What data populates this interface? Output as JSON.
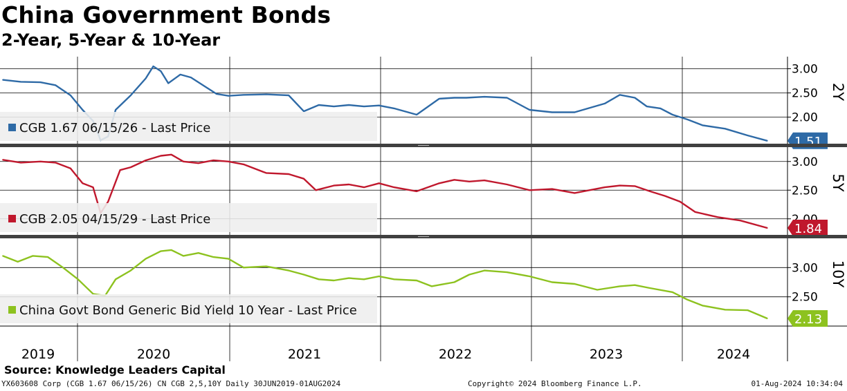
{
  "header": {
    "title": "China Government Bonds",
    "subtitle": "2-Year, 5-Year & 10-Year"
  },
  "footer": {
    "source": "Source: Knowledge Leaders Capital",
    "left": "YX603608 Corp (CGB 1.67 06/15/26) CN CGB 2,5,10Y  Daily 30JUN2019-01AUG2024",
    "middle": "Copyright© 2024 Bloomberg Finance L.P.",
    "right": "01-Aug-2024 10:34:04"
  },
  "colors": {
    "two_year": "#2e6aa6",
    "five_year": "#c0182d",
    "ten_year": "#8dc21f",
    "grid": "#000000",
    "separator": "#404040",
    "legend_bg": "#eeeeee"
  },
  "chart_data": [
    {
      "type": "line",
      "panel": "2Y",
      "axis_title": "2Y",
      "legend": "CGB 1.67 06/15/26 - Last Price",
      "last_value": "1.51",
      "yticks": [
        "3.00",
        "2.50",
        "2.00"
      ],
      "ylim": [
        1.45,
        3.25
      ],
      "x": [
        2019.5,
        2019.62,
        2019.75,
        2019.85,
        2019.95,
        2020.03,
        2020.1,
        2020.15,
        2020.2,
        2020.25,
        2020.35,
        2020.45,
        2020.5,
        2020.55,
        2020.6,
        2020.68,
        2020.75,
        2020.85,
        2020.92,
        2021.0,
        2021.1,
        2021.25,
        2021.4,
        2021.5,
        2021.6,
        2021.7,
        2021.8,
        2021.9,
        2022.0,
        2022.1,
        2022.25,
        2022.4,
        2022.5,
        2022.58,
        2022.7,
        2022.85,
        2023.0,
        2023.15,
        2023.3,
        2023.5,
        2023.6,
        2023.7,
        2023.78,
        2023.87,
        2023.95,
        2024.05,
        2024.15,
        2024.3,
        2024.45,
        2024.58
      ],
      "values": [
        2.77,
        2.73,
        2.72,
        2.66,
        2.45,
        2.15,
        1.92,
        1.52,
        1.6,
        2.15,
        2.45,
        2.8,
        3.05,
        2.95,
        2.7,
        2.88,
        2.82,
        2.62,
        2.48,
        2.44,
        2.46,
        2.47,
        2.45,
        2.12,
        2.25,
        2.22,
        2.25,
        2.22,
        2.24,
        2.18,
        2.05,
        2.38,
        2.4,
        2.4,
        2.42,
        2.4,
        2.15,
        2.1,
        2.1,
        2.28,
        2.46,
        2.4,
        2.22,
        2.18,
        2.05,
        1.95,
        1.83,
        1.76,
        1.62,
        1.51
      ]
    },
    {
      "type": "line",
      "panel": "5Y",
      "axis_title": "5Y",
      "legend": "CGB 2.05 04/15/29 - Last Price",
      "last_value": "1.84",
      "yticks": [
        "3.00",
        "2.50",
        "2.00"
      ],
      "ylim": [
        1.72,
        3.25
      ],
      "x": [
        2019.5,
        2019.62,
        2019.75,
        2019.85,
        2019.95,
        2020.03,
        2020.1,
        2020.15,
        2020.2,
        2020.28,
        2020.35,
        2020.45,
        2020.55,
        2020.62,
        2020.7,
        2020.8,
        2020.9,
        2021.0,
        2021.1,
        2021.25,
        2021.4,
        2021.5,
        2021.58,
        2021.7,
        2021.8,
        2021.9,
        2022.0,
        2022.1,
        2022.25,
        2022.4,
        2022.5,
        2022.6,
        2022.7,
        2022.85,
        2023.0,
        2023.15,
        2023.3,
        2023.5,
        2023.6,
        2023.7,
        2023.8,
        2023.9,
        2024.0,
        2024.1,
        2024.25,
        2024.4,
        2024.58
      ],
      "values": [
        3.03,
        2.98,
        3.0,
        2.98,
        2.88,
        2.62,
        2.55,
        2.1,
        2.3,
        2.85,
        2.9,
        3.02,
        3.1,
        3.12,
        3.0,
        2.97,
        3.02,
        3.0,
        2.95,
        2.8,
        2.78,
        2.7,
        2.5,
        2.58,
        2.6,
        2.55,
        2.62,
        2.55,
        2.48,
        2.62,
        2.68,
        2.65,
        2.67,
        2.6,
        2.5,
        2.52,
        2.45,
        2.55,
        2.58,
        2.57,
        2.48,
        2.4,
        2.3,
        2.12,
        2.03,
        1.97,
        1.84
      ]
    },
    {
      "type": "line",
      "panel": "10Y",
      "axis_title": "10Y",
      "legend": "China Govt Bond Generic Bid Yield 10 Year - Last Price",
      "last_value": "2.13",
      "yticks": [
        "3.00",
        "2.50"
      ],
      "ylim": [
        2.0,
        3.5
      ],
      "x": [
        2019.5,
        2019.6,
        2019.7,
        2019.8,
        2019.9,
        2020.0,
        2020.1,
        2020.18,
        2020.25,
        2020.35,
        2020.45,
        2020.55,
        2020.62,
        2020.7,
        2020.8,
        2020.9,
        2021.0,
        2021.1,
        2021.25,
        2021.4,
        2021.5,
        2021.6,
        2021.7,
        2021.8,
        2021.9,
        2022.0,
        2022.1,
        2022.25,
        2022.35,
        2022.5,
        2022.6,
        2022.7,
        2022.85,
        2023.0,
        2023.15,
        2023.3,
        2023.45,
        2023.6,
        2023.7,
        2023.8,
        2023.95,
        2024.05,
        2024.15,
        2024.3,
        2024.45,
        2024.58
      ],
      "values": [
        3.2,
        3.1,
        3.2,
        3.18,
        3.0,
        2.8,
        2.55,
        2.52,
        2.8,
        2.95,
        3.15,
        3.28,
        3.3,
        3.2,
        3.25,
        3.18,
        3.15,
        3.0,
        3.02,
        2.95,
        2.88,
        2.8,
        2.78,
        2.82,
        2.8,
        2.85,
        2.8,
        2.78,
        2.68,
        2.75,
        2.88,
        2.95,
        2.92,
        2.85,
        2.75,
        2.72,
        2.62,
        2.68,
        2.7,
        2.65,
        2.58,
        2.45,
        2.35,
        2.28,
        2.27,
        2.13
      ]
    }
  ],
  "x_axis": {
    "labels": [
      "2019",
      "2020",
      "2021",
      "2022",
      "2023",
      "2024"
    ],
    "domain": [
      2019.5,
      2024.59
    ]
  }
}
